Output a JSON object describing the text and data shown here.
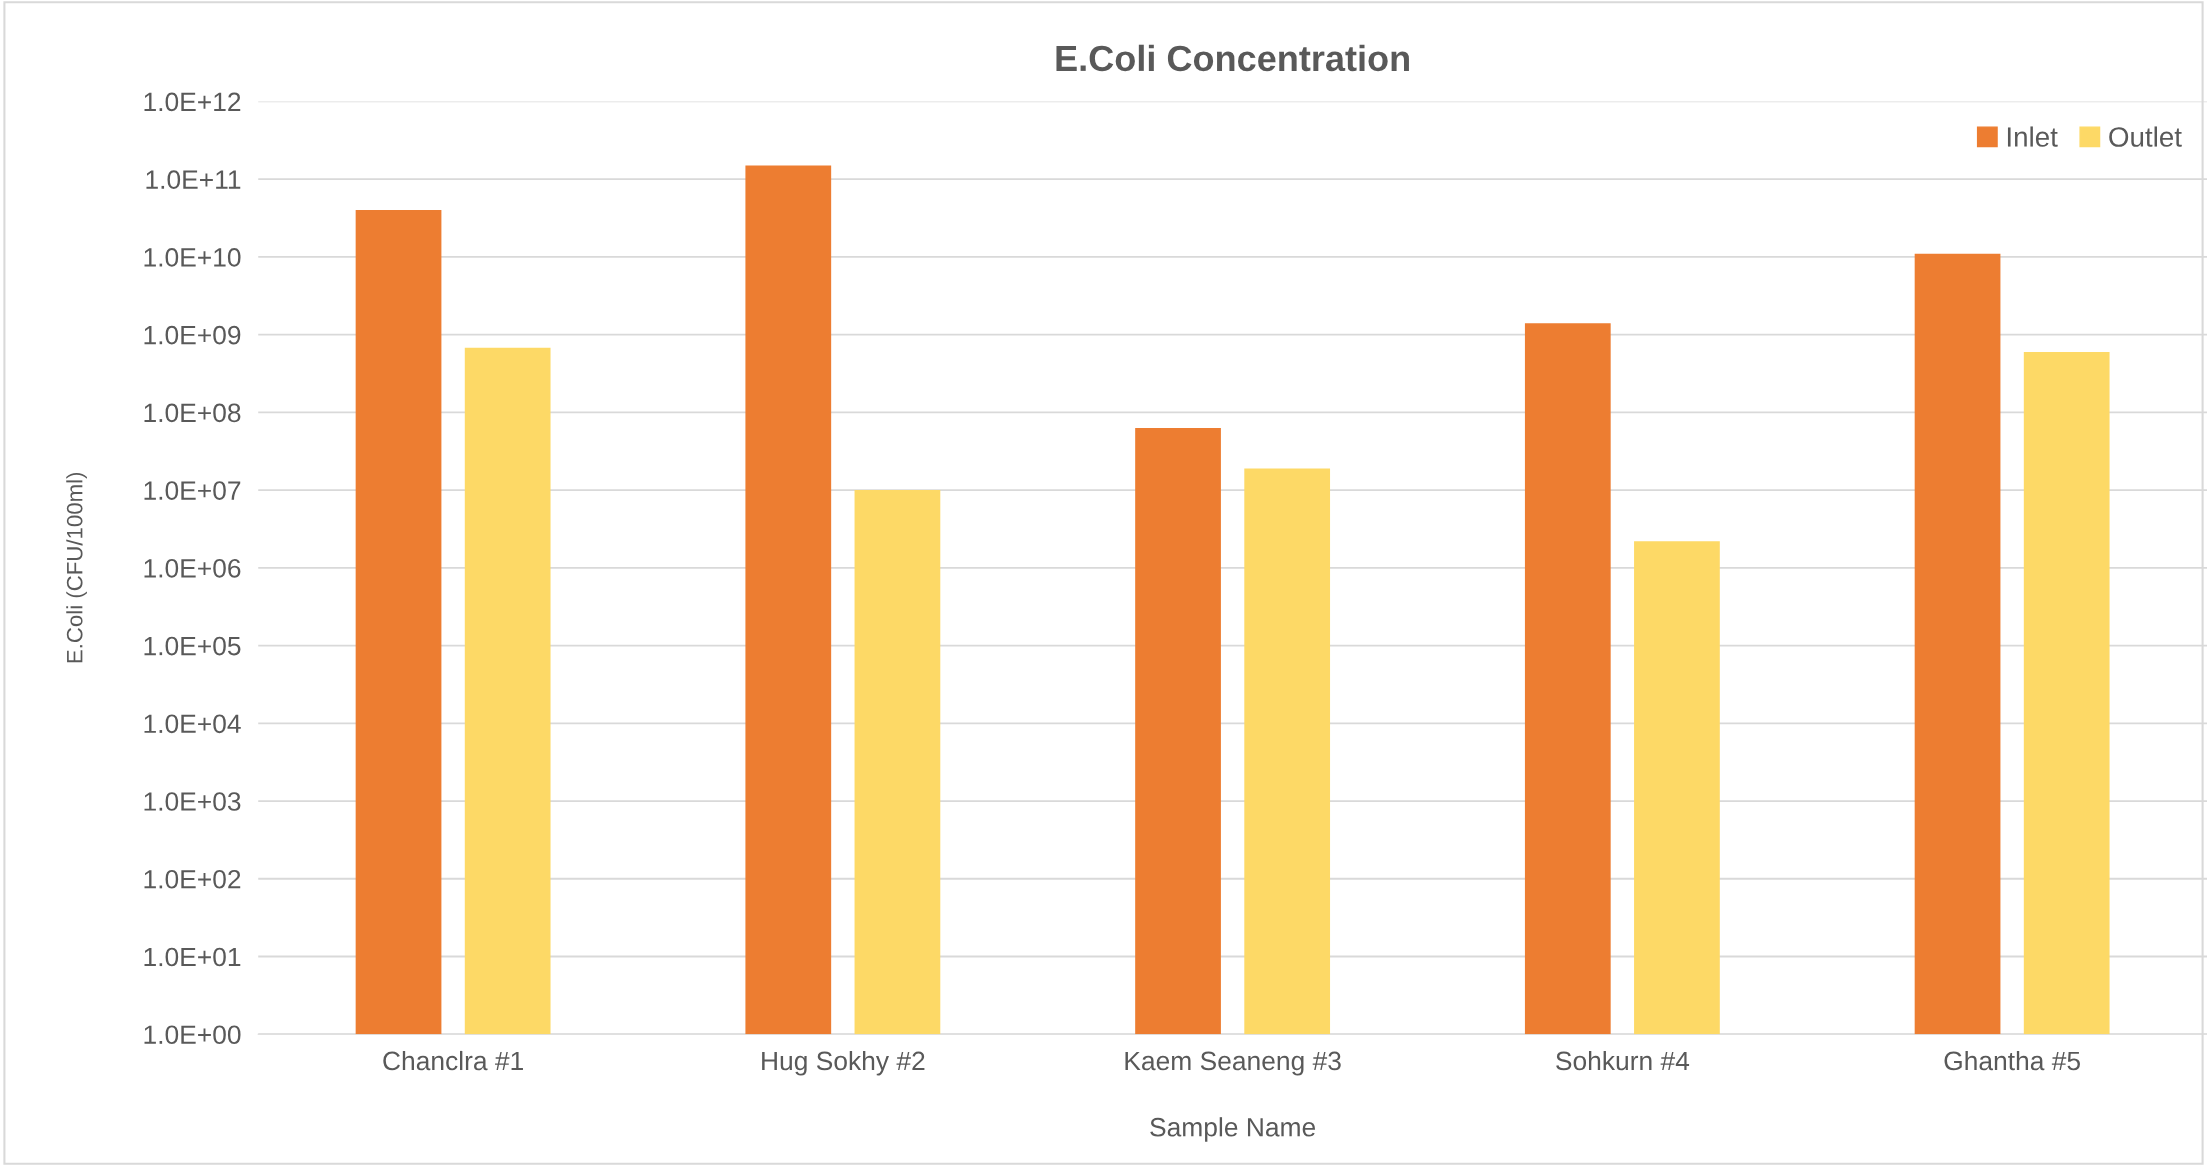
{
  "chart_data": {
    "type": "bar",
    "title": "E.Coli Concentration",
    "xlabel": "Sample Name",
    "ylabel": "E.Coli (CFU/100ml)",
    "categories": [
      "Chanclra #1",
      "Hug Sokhy #2",
      "Kaem Seaneng #3",
      "Sohkurn #4",
      "Ghantha #5"
    ],
    "series": [
      {
        "name": "Inlet",
        "color": "#ed7d31",
        "values": [
          40000000000.0,
          150000000000.0,
          63000000.0,
          1400000000.0,
          11000000000.0
        ]
      },
      {
        "name": "Outlet",
        "color": "#fdd966",
        "values": [
          680000000.0,
          10000000.0,
          19000000.0,
          2200000.0,
          600000000.0
        ]
      }
    ],
    "log": "y",
    "ylim": [
      1,
      1000000000000.0
    ],
    "yticks": [
      {
        "value": 1,
        "label": "1.0E+00"
      },
      {
        "value": 10,
        "label": "1.0E+01"
      },
      {
        "value": 100,
        "label": "1.0E+02"
      },
      {
        "value": 1000,
        "label": "1.0E+03"
      },
      {
        "value": 10000.0,
        "label": "1.0E+04"
      },
      {
        "value": 100000.0,
        "label": "1.0E+05"
      },
      {
        "value": 1000000.0,
        "label": "1.0E+06"
      },
      {
        "value": 10000000.0,
        "label": "1.0E+07"
      },
      {
        "value": 100000000.0,
        "label": "1.0E+08"
      },
      {
        "value": 1000000000.0,
        "label": "1.0E+09"
      },
      {
        "value": 10000000000.0,
        "label": "1.0E+10"
      },
      {
        "value": 100000000000.0,
        "label": "1.0E+11"
      },
      {
        "value": 1000000000000.0,
        "label": "1.0E+12"
      }
    ],
    "grid": "y",
    "legend": "top right"
  }
}
